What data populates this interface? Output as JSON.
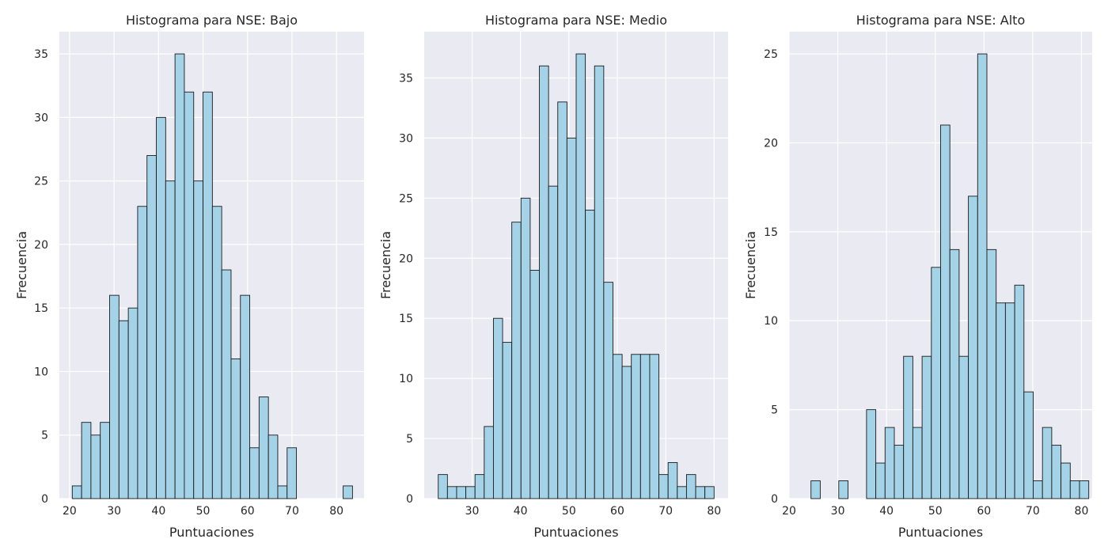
{
  "chart_data": [
    {
      "type": "bar",
      "title": "Histograma para NSE: Bajo",
      "xlabel": "Puntuaciones",
      "ylabel": "Frecuencia",
      "bin_width": 2.1,
      "x_start": 20.6,
      "values": [
        1,
        6,
        5,
        6,
        16,
        14,
        15,
        23,
        27,
        30,
        25,
        35,
        32,
        25,
        32,
        23,
        18,
        11,
        16,
        4,
        8,
        5,
        1,
        4,
        0,
        0,
        0,
        0,
        0,
        1
      ],
      "xlim": [
        17.7,
        86.2
      ],
      "ylim": [
        0,
        36.75
      ],
      "xticks": [
        20,
        30,
        40,
        50,
        60,
        70,
        80
      ],
      "yticks": [
        0,
        5,
        10,
        15,
        20,
        25,
        30,
        35
      ],
      "bar_color": "#a4d3e8",
      "edge_color": "#1a1a1a",
      "grid": true
    },
    {
      "type": "bar",
      "title": "Histograma para NSE: Medio",
      "xlabel": "Puntuaciones",
      "ylabel": "Frecuencia",
      "bin_width": 1.9,
      "x_start": 23.0,
      "values": [
        2,
        1,
        1,
        1,
        2,
        6,
        15,
        13,
        23,
        25,
        19,
        36,
        26,
        33,
        30,
        37,
        24,
        36,
        18,
        12,
        11,
        12,
        12,
        12,
        2,
        3,
        1,
        2,
        1,
        1
      ],
      "xlim": [
        20.1,
        82.9
      ],
      "ylim": [
        0,
        38.85
      ],
      "xticks": [
        30,
        40,
        50,
        60,
        70,
        80
      ],
      "yticks": [
        0,
        5,
        10,
        15,
        20,
        25,
        30,
        35
      ],
      "bar_color": "#a4d3e8",
      "edge_color": "#1a1a1a",
      "grid": true
    },
    {
      "type": "bar",
      "title": "Histograma para NSE: Alto",
      "xlabel": "Puntuaciones",
      "ylabel": "Frecuencia",
      "bin_width": 1.9,
      "x_start": 22.6,
      "values": [
        0,
        1,
        0,
        0,
        1,
        0,
        0,
        5,
        2,
        4,
        3,
        8,
        4,
        8,
        13,
        21,
        14,
        8,
        17,
        25,
        14,
        11,
        11,
        12,
        6,
        1,
        4,
        3,
        2,
        1,
        1
      ],
      "xlim": [
        20.0,
        82.2
      ],
      "ylim": [
        0,
        26.25
      ],
      "xticks": [
        20,
        30,
        40,
        50,
        60,
        70,
        80
      ],
      "yticks": [
        0,
        5,
        10,
        15,
        20,
        25
      ],
      "bar_color": "#a4d3e8",
      "edge_color": "#1a1a1a",
      "grid": true
    }
  ]
}
